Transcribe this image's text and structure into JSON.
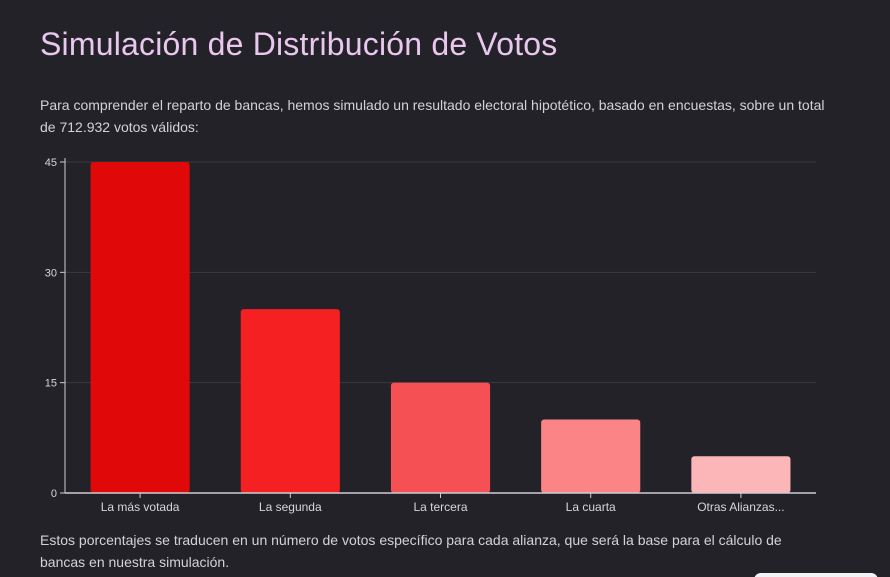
{
  "page": {
    "title": "Simulación de Distribución de Votos",
    "intro": "Para comprender el reparto de bancas, hemos simulado un resultado electoral hipotético, basado en encuestas, sobre un total de 712.932 votos válidos:",
    "outro": "Estos porcentajes se traducen en un número de votos específico para cada alianza, que será la base para el cálculo de bancas en nuestra simulación."
  },
  "chart_data": {
    "type": "bar",
    "title": "",
    "xlabel": "",
    "ylabel": "",
    "categories": [
      "La más votada",
      "La segunda",
      "La tercera",
      "La cuarta",
      "Otras Alianzas..."
    ],
    "values": [
      45,
      25,
      15,
      10,
      5
    ],
    "colors": [
      "#e00808",
      "#f52021",
      "#f55054",
      "#fb8487",
      "#fdb6b8"
    ],
    "ylim": [
      0,
      45
    ],
    "yticks": [
      "0",
      "15",
      "30",
      "45"
    ],
    "grid": true,
    "legend": "none"
  }
}
